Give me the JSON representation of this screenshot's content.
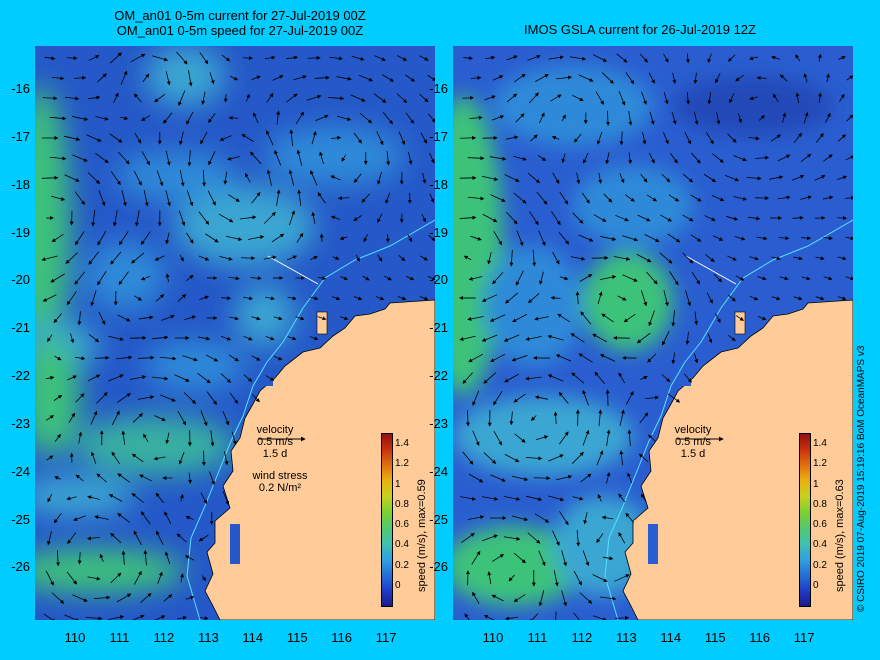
{
  "left_panel": {
    "title_line1": "OM_an01 0-5m current for 27-Jul-2019 00Z",
    "title_line2": "OM_an01 0-5m speed for 27-Jul-2019 00Z",
    "legend_velocity": "velocity",
    "legend_speed": "0.5 m/s",
    "legend_time": "1.5 d",
    "legend_wind": "wind stress",
    "legend_wind_value": "0.2 N/m²",
    "colorbar_label": "speed (m/s), max=0.59",
    "max_speed": 0.59
  },
  "right_panel": {
    "title": "IMOS GSLA current for 26-Jul-2019 12Z",
    "legend_velocity": "velocity",
    "legend_speed": "0.5 m/s",
    "legend_time": "1.5 d",
    "colorbar_label": "speed (m/s), max=0.63",
    "max_speed": 0.63
  },
  "axes": {
    "lat_ticks": [
      "-16",
      "-17",
      "-18",
      "-19",
      "-20",
      "-21",
      "-22",
      "-23",
      "-24",
      "-25",
      "-26"
    ],
    "lon_ticks": [
      "110",
      "111",
      "112",
      "113",
      "114",
      "115",
      "116",
      "117"
    ],
    "lon_range": [
      109.1,
      118.1
    ],
    "lat_range": [
      -27.1,
      -15.1
    ]
  },
  "colorbar": {
    "ticks": [
      "1.4",
      "1.2",
      "1",
      "0.8",
      "0.6",
      "0.4",
      "0.2",
      "0"
    ],
    "range": [
      -0.2,
      1.5
    ],
    "colors": [
      "#1a1a8c",
      "#1f3cc8",
      "#2470d8",
      "#30a0e0",
      "#40c0b0",
      "#50c870",
      "#80d030",
      "#c8d020",
      "#e8b010",
      "#e07010",
      "#c83010",
      "#901010"
    ]
  },
  "credit": "© CSIRO 2019  07-Aug-2019 15:19:16 BoM OceanMAPS v3",
  "colors": {
    "background": "#00ccff",
    "ocean": "#2558c8",
    "land": "#ffcc99",
    "isobath": "#55e0ff",
    "arrow": "#000000"
  }
}
